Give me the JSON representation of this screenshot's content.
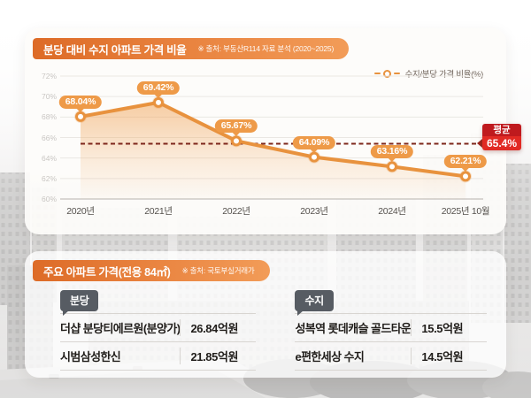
{
  "chart_card": {
    "title": "분당 대비 수지 아파트 가격 비율",
    "source": "※ 출처: 부동산R114 자료 분석 (2020~2025)",
    "legend_label": "수지/분당 가격 비율(%)",
    "average_tag": "평균",
    "average_text": "65.4%"
  },
  "chart_data": {
    "type": "line",
    "title": "분당 대비 수지 아파트 가격 비율",
    "categories": [
      "2020년",
      "2021년",
      "2022년",
      "2023년",
      "2024년",
      "2025년 10월"
    ],
    "series": [
      {
        "name": "수지/분당 가격 비율(%)",
        "values": [
          68.04,
          69.42,
          65.67,
          64.09,
          63.16,
          62.21
        ]
      }
    ],
    "value_labels": [
      "68.04%",
      "69.42%",
      "65.67%",
      "64.09%",
      "63.16%",
      "62.21%"
    ],
    "average": 65.4,
    "average_annotation": "평균 65.4%",
    "ylim": [
      60,
      72
    ],
    "yticks": [
      72,
      70,
      68,
      66,
      64,
      62,
      60
    ],
    "ytick_suffix": "%",
    "grid": true,
    "legend_position": "top-right",
    "line_color": "#e8923e",
    "area_top_color": "#f1a65c",
    "label_bg_color": "#ee9a48",
    "average_line_color": "#7e271c",
    "average_box_colors": [
      "#bf1a1e",
      "#e12a24"
    ]
  },
  "price_card": {
    "title": "주요 아파트 가격(전용 84㎡)",
    "source": "※ 출처: 국토부실거래가",
    "tables": [
      {
        "tag": "분당",
        "rows": [
          {
            "name": "더샵 분당티에르원(분양가)",
            "price": "26.84억원"
          },
          {
            "name": "시범삼성한신",
            "price": "21.85억원"
          }
        ]
      },
      {
        "tag": "수지",
        "rows": [
          {
            "name": "성복역 롯데캐슬 골드타운",
            "price": "15.5억원"
          },
          {
            "name": "e편한세상 수지",
            "price": "14.5억원"
          }
        ]
      }
    ]
  }
}
